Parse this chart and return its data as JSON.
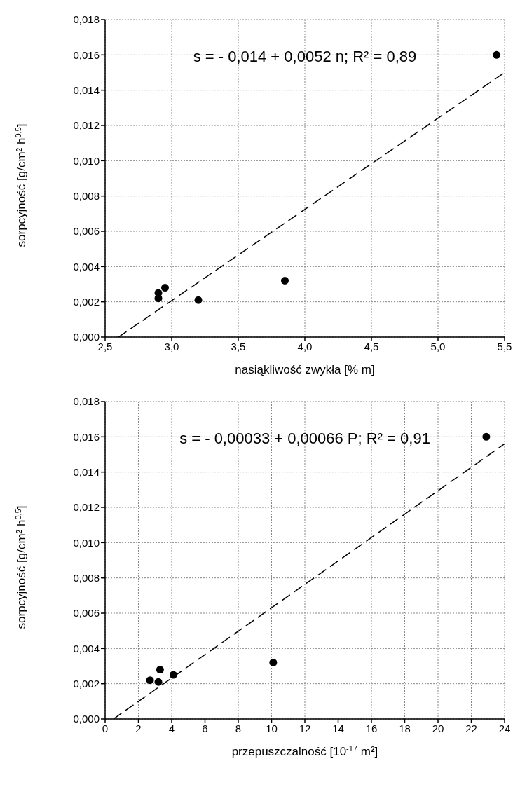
{
  "chart_data": [
    {
      "type": "scatter",
      "xlabel": "nasiąkliwość zwykła [% m]",
      "ylabel": "sorpcyjność [g/cm² h$^{0,5}$]",
      "annotations": [
        "s = - 0,014 + 0,0052 n; R² = 0,89"
      ],
      "xlim": [
        2.5,
        5.5
      ],
      "xticks": [
        {
          "value": 2.5,
          "label": "2,5"
        },
        {
          "value": 3,
          "label": "3,0"
        },
        {
          "value": 3.5,
          "label": "3,5"
        },
        {
          "value": 4,
          "label": "4,0"
        },
        {
          "value": 4.5,
          "label": "4,5"
        },
        {
          "value": 5,
          "label": "5,0"
        },
        {
          "value": 5.5,
          "label": "5,5"
        }
      ],
      "ylim": [
        0,
        0.018
      ],
      "yticks": [
        {
          "value": 0,
          "label": "0,000"
        },
        {
          "value": 0.002,
          "label": "0,002"
        },
        {
          "value": 0.004,
          "label": "0,004"
        },
        {
          "value": 0.006,
          "label": "0,006"
        },
        {
          "value": 0.008,
          "label": "0,008"
        },
        {
          "value": 0.01,
          "label": "0,010"
        },
        {
          "value": 0.012,
          "label": "0,012"
        },
        {
          "value": 0.014,
          "label": "0,014"
        },
        {
          "value": 0.016,
          "label": "0,016"
        },
        {
          "value": 0.018,
          "label": "0,018"
        }
      ],
      "grid": true,
      "legend": false,
      "series": [
        {
          "type": "scatter",
          "color": "#000000",
          "marker": "circle",
          "x": [
            2.9,
            2.9,
            2.95,
            3.2,
            3.85,
            5.44
          ],
          "values": [
            0.0025,
            0.0022,
            0.0028,
            0.0021,
            0.0032,
            0.016
          ]
        },
        {
          "type": "line",
          "color": "#000000",
          "marker": "none",
          "line_style": "dashed",
          "x": [
            2.6,
            5.5
          ],
          "values": [
            0,
            0.015
          ]
        }
      ]
    },
    {
      "type": "scatter",
      "xlabel": "przepuszczalność [10$^{-17}$ m²]",
      "ylabel": "sorpcyjność [g/cm² h$^{0,5}$]",
      "annotations": [
        "s = - 0,00033 + 0,00066 P; R² = 0,91"
      ],
      "xlim": [
        0,
        24
      ],
      "xticks": [
        0,
        2,
        4,
        6,
        8,
        10,
        12,
        14,
        16,
        18,
        20,
        22,
        24
      ],
      "ylim": [
        0,
        0.018
      ],
      "yticks": [
        {
          "value": 0,
          "label": "0,000"
        },
        {
          "value": 0.002,
          "label": "0,002"
        },
        {
          "value": 0.004,
          "label": "0,004"
        },
        {
          "value": 0.006,
          "label": "0,006"
        },
        {
          "value": 0.008,
          "label": "0,008"
        },
        {
          "value": 0.01,
          "label": "0,010"
        },
        {
          "value": 0.012,
          "label": "0,012"
        },
        {
          "value": 0.014,
          "label": "0,014"
        },
        {
          "value": 0.016,
          "label": "0,016"
        },
        {
          "value": 0.018,
          "label": "0,018"
        }
      ],
      "grid": true,
      "legend": false,
      "series": [
        {
          "type": "scatter",
          "color": "#000000",
          "marker": "circle",
          "x": [
            2.7,
            3.2,
            3.3,
            4.1,
            10.1,
            22.9
          ],
          "values": [
            0.0022,
            0.0021,
            0.0028,
            0.0025,
            0.0032,
            0.016
          ]
        },
        {
          "type": "line",
          "color": "#000000",
          "marker": "none",
          "line_style": "dashed",
          "x": [
            0.5,
            24
          ],
          "values": [
            0,
            0.0156
          ]
        }
      ]
    }
  ]
}
